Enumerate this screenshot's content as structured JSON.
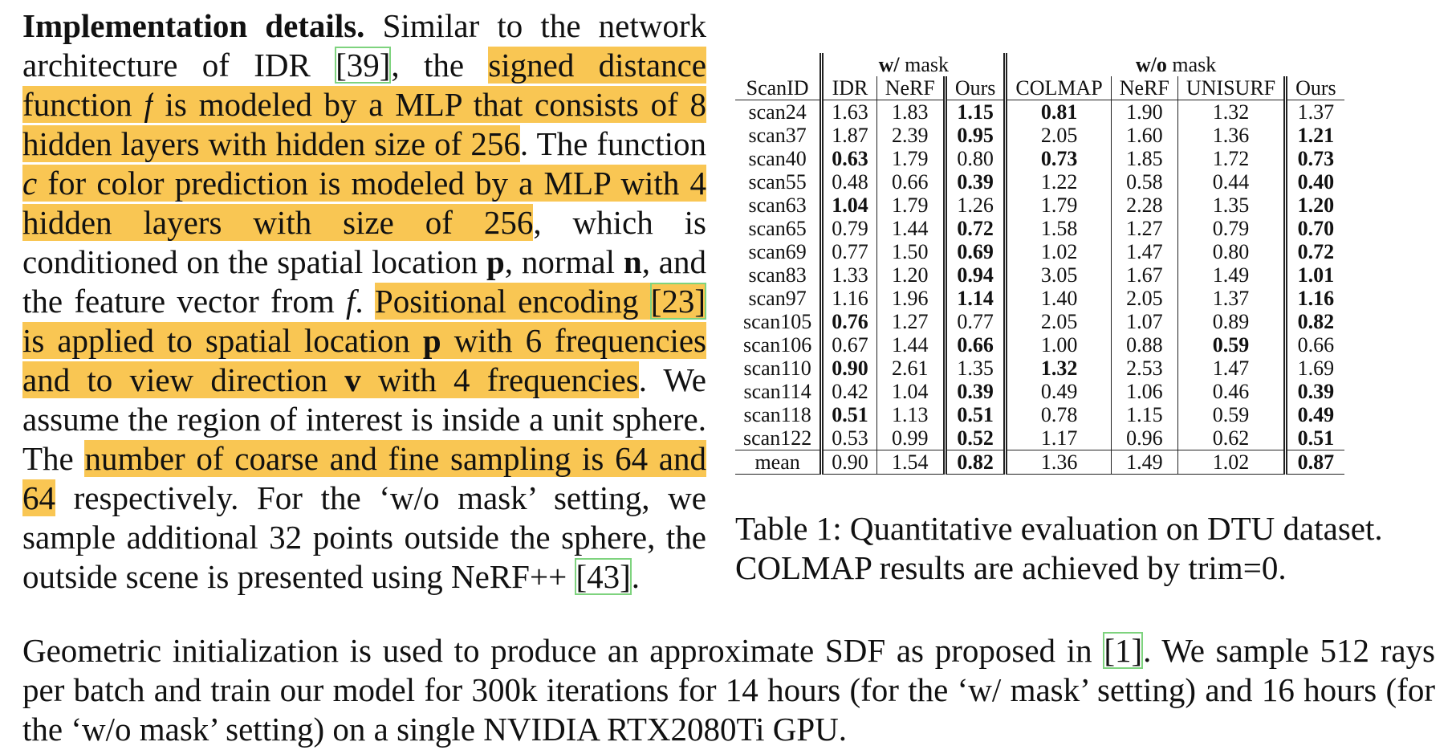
{
  "left_column": {
    "segments": [
      {
        "text": "Implementation details.",
        "style": "bold"
      },
      {
        "text": "   Similar to the network architecture of IDR ",
        "style": "plain"
      },
      {
        "text": "[39]",
        "style": "cite"
      },
      {
        "text": ", the ",
        "style": "plain"
      },
      {
        "text": "signed distance function ",
        "style": "hl"
      },
      {
        "text": "f",
        "style": "hl-ital"
      },
      {
        "text": " is modeled by a MLP that consists of 8 hidden layers with hidden size of 256",
        "style": "hl"
      },
      {
        "text": ". The function ",
        "style": "plain"
      },
      {
        "text": "c",
        "style": "hl-ital"
      },
      {
        "text": " for color prediction is modeled by a MLP with 4 hidden layers with size of 256",
        "style": "hl"
      },
      {
        "text": ", which is conditioned on the spatial location ",
        "style": "plain"
      },
      {
        "text": "p",
        "style": "bold"
      },
      {
        "text": ", normal ",
        "style": "plain"
      },
      {
        "text": "n",
        "style": "bold"
      },
      {
        "text": ", and the feature vector from ",
        "style": "plain"
      },
      {
        "text": "f",
        "style": "ital"
      },
      {
        "text": ".  ",
        "style": "plain"
      },
      {
        "text": "Positional encoding ",
        "style": "hl"
      },
      {
        "text": "[23]",
        "style": "hl-cite"
      },
      {
        "text": " is applied to spatial location ",
        "style": "hl"
      },
      {
        "text": "p",
        "style": "hl-bold"
      },
      {
        "text": " with 6 frequencies and to view direction ",
        "style": "hl"
      },
      {
        "text": "v",
        "style": "hl-bold"
      },
      {
        "text": " with 4 frequencies",
        "style": "hl"
      },
      {
        "text": ". We assume the region of interest is inside a unit sphere.  The ",
        "style": "plain"
      },
      {
        "text": "number of coarse and fine sampling is 64 and 64",
        "style": "hl"
      },
      {
        "text": " respectively. For the ‘w/o mask’ setting, we sample additional 32 points outside the sphere, the outside scene is presented using NeRF++ ",
        "style": "plain"
      },
      {
        "text": "[43]",
        "style": "cite"
      },
      {
        "text": ".",
        "style": "plain"
      }
    ]
  },
  "bottom_paragraph": {
    "segments": [
      {
        "text": "Geometric initialization is used to produce an approximate SDF as proposed in ",
        "style": "plain"
      },
      {
        "text": "[1]",
        "style": "cite"
      },
      {
        "text": ". We sample 512 rays per batch and train our model for 300k iterations for 14 hours (for the ‘w/ mask’ setting) and 16 hours (for the ‘w/o mask’ setting) on a single NVIDIA RTX2080Ti GPU.",
        "style": "plain"
      }
    ]
  },
  "table": {
    "group_headers": [
      {
        "bold": "w/",
        "rest": " mask"
      },
      {
        "bold": "w/o",
        "rest": " mask"
      }
    ],
    "columns": [
      "ScanID",
      "IDR",
      "NeRF",
      "Ours",
      "COLMAP",
      "NeRF",
      "UNISURF",
      "Ours"
    ],
    "rows": [
      {
        "id": "scan24",
        "values": [
          "1.63",
          "1.83",
          "1.15",
          "0.81",
          "1.90",
          "1.32",
          "1.37"
        ],
        "bold": [
          2,
          3
        ]
      },
      {
        "id": "scan37",
        "values": [
          "1.87",
          "2.39",
          "0.95",
          "2.05",
          "1.60",
          "1.36",
          "1.21"
        ],
        "bold": [
          2,
          6
        ]
      },
      {
        "id": "scan40",
        "values": [
          "0.63",
          "1.79",
          "0.80",
          "0.73",
          "1.85",
          "1.72",
          "0.73"
        ],
        "bold": [
          0,
          3,
          6
        ]
      },
      {
        "id": "scan55",
        "values": [
          "0.48",
          "0.66",
          "0.39",
          "1.22",
          "0.58",
          "0.44",
          "0.40"
        ],
        "bold": [
          2,
          6
        ]
      },
      {
        "id": "scan63",
        "values": [
          "1.04",
          "1.79",
          "1.26",
          "1.79",
          "2.28",
          "1.35",
          "1.20"
        ],
        "bold": [
          0,
          6
        ]
      },
      {
        "id": "scan65",
        "values": [
          "0.79",
          "1.44",
          "0.72",
          "1.58",
          "1.27",
          "0.79",
          "0.70"
        ],
        "bold": [
          2,
          6
        ]
      },
      {
        "id": "scan69",
        "values": [
          "0.77",
          "1.50",
          "0.69",
          "1.02",
          "1.47",
          "0.80",
          "0.72"
        ],
        "bold": [
          2,
          6
        ]
      },
      {
        "id": "scan83",
        "values": [
          "1.33",
          "1.20",
          "0.94",
          "3.05",
          "1.67",
          "1.49",
          "1.01"
        ],
        "bold": [
          2,
          6
        ]
      },
      {
        "id": "scan97",
        "values": [
          "1.16",
          "1.96",
          "1.14",
          "1.40",
          "2.05",
          "1.37",
          "1.16"
        ],
        "bold": [
          2,
          6
        ]
      },
      {
        "id": "scan105",
        "values": [
          "0.76",
          "1.27",
          "0.77",
          "2.05",
          "1.07",
          "0.89",
          "0.82"
        ],
        "bold": [
          0,
          6
        ]
      },
      {
        "id": "scan106",
        "values": [
          "0.67",
          "1.44",
          "0.66",
          "1.00",
          "0.88",
          "0.59",
          "0.66"
        ],
        "bold": [
          2,
          5
        ]
      },
      {
        "id": "scan110",
        "values": [
          "0.90",
          "2.61",
          "1.35",
          "1.32",
          "2.53",
          "1.47",
          "1.69"
        ],
        "bold": [
          0,
          3
        ]
      },
      {
        "id": "scan114",
        "values": [
          "0.42",
          "1.04",
          "0.39",
          "0.49",
          "1.06",
          "0.46",
          "0.39"
        ],
        "bold": [
          2,
          6
        ]
      },
      {
        "id": "scan118",
        "values": [
          "0.51",
          "1.13",
          "0.51",
          "0.78",
          "1.15",
          "0.59",
          "0.49"
        ],
        "bold": [
          0,
          2,
          6
        ]
      },
      {
        "id": "scan122",
        "values": [
          "0.53",
          "0.99",
          "0.52",
          "1.17",
          "0.96",
          "0.62",
          "0.51"
        ],
        "bold": [
          2,
          6
        ]
      }
    ],
    "mean": {
      "id": "mean",
      "values": [
        "0.90",
        "1.54",
        "0.82",
        "1.36",
        "1.49",
        "1.02",
        "0.87"
      ],
      "bold": [
        2,
        6
      ]
    }
  },
  "caption": "Table 1: Quantitative evaluation on DTU dataset. COLMAP results are achieved by trim=0."
}
